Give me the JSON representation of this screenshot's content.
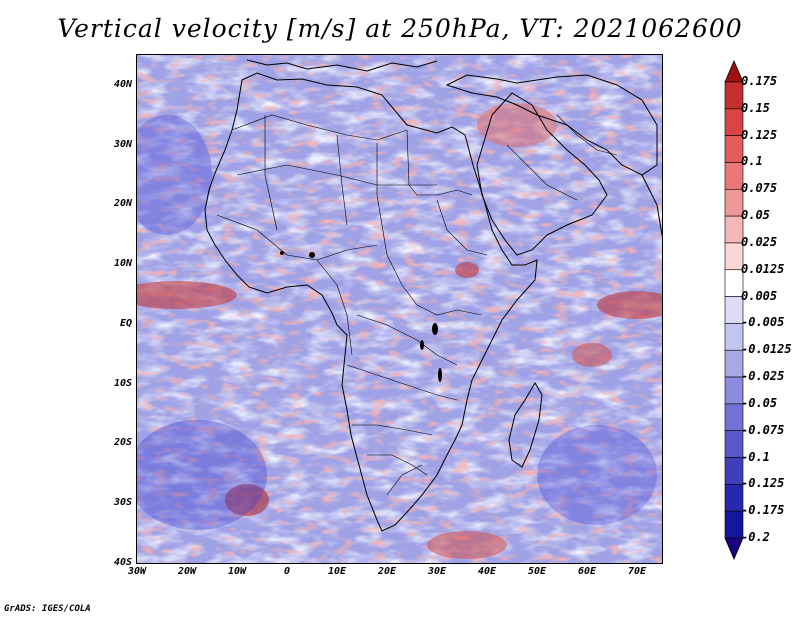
{
  "title": "Vertical velocity [m/s] at 250hPa, VT: 2021062600",
  "credit": "GrADS: IGES/COLA",
  "map": {
    "region": "Africa",
    "lon_range": [
      -30,
      75
    ],
    "lat_range": [
      -40,
      45
    ],
    "lat_labels": [
      "40N",
      "30N",
      "20N",
      "10N",
      "EQ",
      "10S",
      "20S",
      "30S",
      "40S"
    ],
    "lon_labels": [
      "30W",
      "20W",
      "10W",
      "0",
      "10E",
      "20E",
      "30E",
      "40E",
      "50E",
      "60E",
      "70E"
    ]
  },
  "colorbar": {
    "labels": [
      "0.175",
      "0.15",
      "0.125",
      "0.1",
      "0.075",
      "0.05",
      "0.025",
      "0.0125",
      "0.005",
      "-0.005",
      "-0.0125",
      "-0.025",
      "-0.05",
      "-0.075",
      "-0.1",
      "-0.125",
      "-0.175",
      "-0.2"
    ],
    "colors": [
      "#b22222",
      "#c62f2f",
      "#d94545",
      "#e35c5c",
      "#ea7878",
      "#f09797",
      "#f5b8b8",
      "#f9d7d7",
      "#ffffff",
      "#dcdcf6",
      "#c4c4f0",
      "#a8a8e6",
      "#8c8cde",
      "#7272d4",
      "#5858c8",
      "#3f3fbb",
      "#2828ac",
      "#16169b",
      "#0a0a8a"
    ],
    "top_arrow_color": "#a01010",
    "bottom_arrow_color": "#1a0080"
  }
}
